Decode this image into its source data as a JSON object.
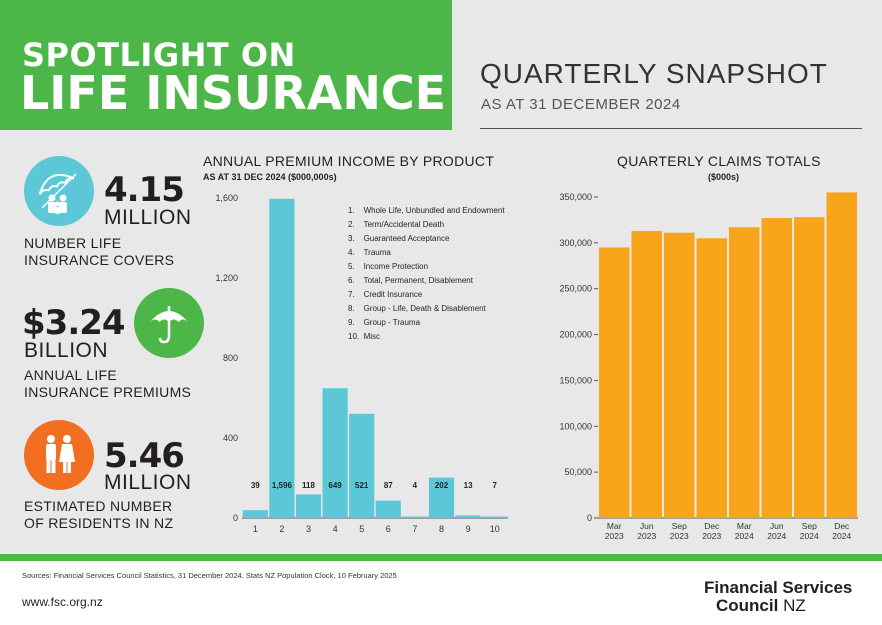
{
  "header": {
    "title_line1": "SPOTLIGHT ON",
    "title_line2": "LIFE INSURANCE",
    "snapshot_title": "QUARTERLY SNAPSHOT",
    "snapshot_sub": "AS AT 31 DECEMBER 2024"
  },
  "stats": [
    {
      "value": "4.15",
      "unit": "MILLION",
      "desc1": "NUMBER LIFE",
      "desc2": "INSURANCE COVERS",
      "icon": "umbrella-family-icon"
    },
    {
      "value": "$3.24",
      "unit": "BILLION",
      "desc1": "ANNUAL LIFE",
      "desc2": "INSURANCE PREMIUMS",
      "icon": "umbrella-icon"
    },
    {
      "value": "5.46",
      "unit": "MILLION",
      "desc1": "ESTIMATED NUMBER",
      "desc2": "OF RESIDENTS IN NZ",
      "icon": "people-icon"
    }
  ],
  "colors": {
    "green": "#4cb748",
    "teal": "#5cc8d7",
    "orange_circle": "#f26f21",
    "orange_bar": "#f9a51b"
  },
  "chart_data": [
    {
      "type": "bar",
      "title": "ANNUAL PREMIUM INCOME BY PRODUCT",
      "subtitle": "AS AT 31 DEC 2024 ($000,000s)",
      "categories": [
        "1",
        "2",
        "3",
        "4",
        "5",
        "6",
        "7",
        "8",
        "9",
        "10"
      ],
      "values": [
        39,
        1596,
        118,
        649,
        521,
        87,
        4,
        202,
        13,
        7
      ],
      "data_labels": [
        "39",
        "1,596",
        "118",
        "649",
        "521",
        "87",
        "4",
        "202",
        "13",
        "7"
      ],
      "ylim": [
        0,
        1600
      ],
      "yticks": [
        "0",
        "400",
        "800",
        "1,200",
        "1,600"
      ],
      "ytick_values": [
        0,
        400,
        800,
        1200,
        1600
      ],
      "legend": [
        "1.    Whole Life, Unbundled and Endowment",
        "2.    Term/Accidental Death",
        "3.    Guaranteed Acceptance",
        "4.    Trauma",
        "5.    Income Protection",
        "6.    Total, Permanent, Disablement",
        "7.    Credit Insurance",
        "8.    Group - Life, Death & Disablement",
        "9.    Group - Trauma",
        "10.  Misc"
      ],
      "grid": false
    },
    {
      "type": "bar",
      "title": "QUARTERLY CLAIMS TOTALS",
      "subtitle": "($000s)",
      "categories": [
        [
          "Mar",
          "2023"
        ],
        [
          "Jun",
          "2023"
        ],
        [
          "Sep",
          "2023"
        ],
        [
          "Dec",
          "2023"
        ],
        [
          "Mar",
          "2024"
        ],
        [
          "Jun",
          "2024"
        ],
        [
          "Sep",
          "2024"
        ],
        [
          "Dec",
          "2024"
        ]
      ],
      "values": [
        295000,
        313000,
        311000,
        305000,
        317000,
        327000,
        328000,
        355000
      ],
      "ylim": [
        0,
        350000
      ],
      "yticks": [
        "0",
        "50,000",
        "100,000",
        "150,000",
        "200,000",
        "250,000",
        "300,000",
        "350,000"
      ],
      "ytick_values": [
        0,
        50000,
        100000,
        150000,
        200000,
        250000,
        300000,
        350000
      ],
      "grid": false
    }
  ],
  "footer": {
    "sources": "Sources: Financial Services Council Statistics, 31 December 2024. Stats NZ Population Clock, 10 February 2025",
    "url": "www.fsc.org.nz",
    "logo_line1": "Financial Services",
    "logo_line2a": "Council",
    "logo_line2b": " NZ"
  }
}
